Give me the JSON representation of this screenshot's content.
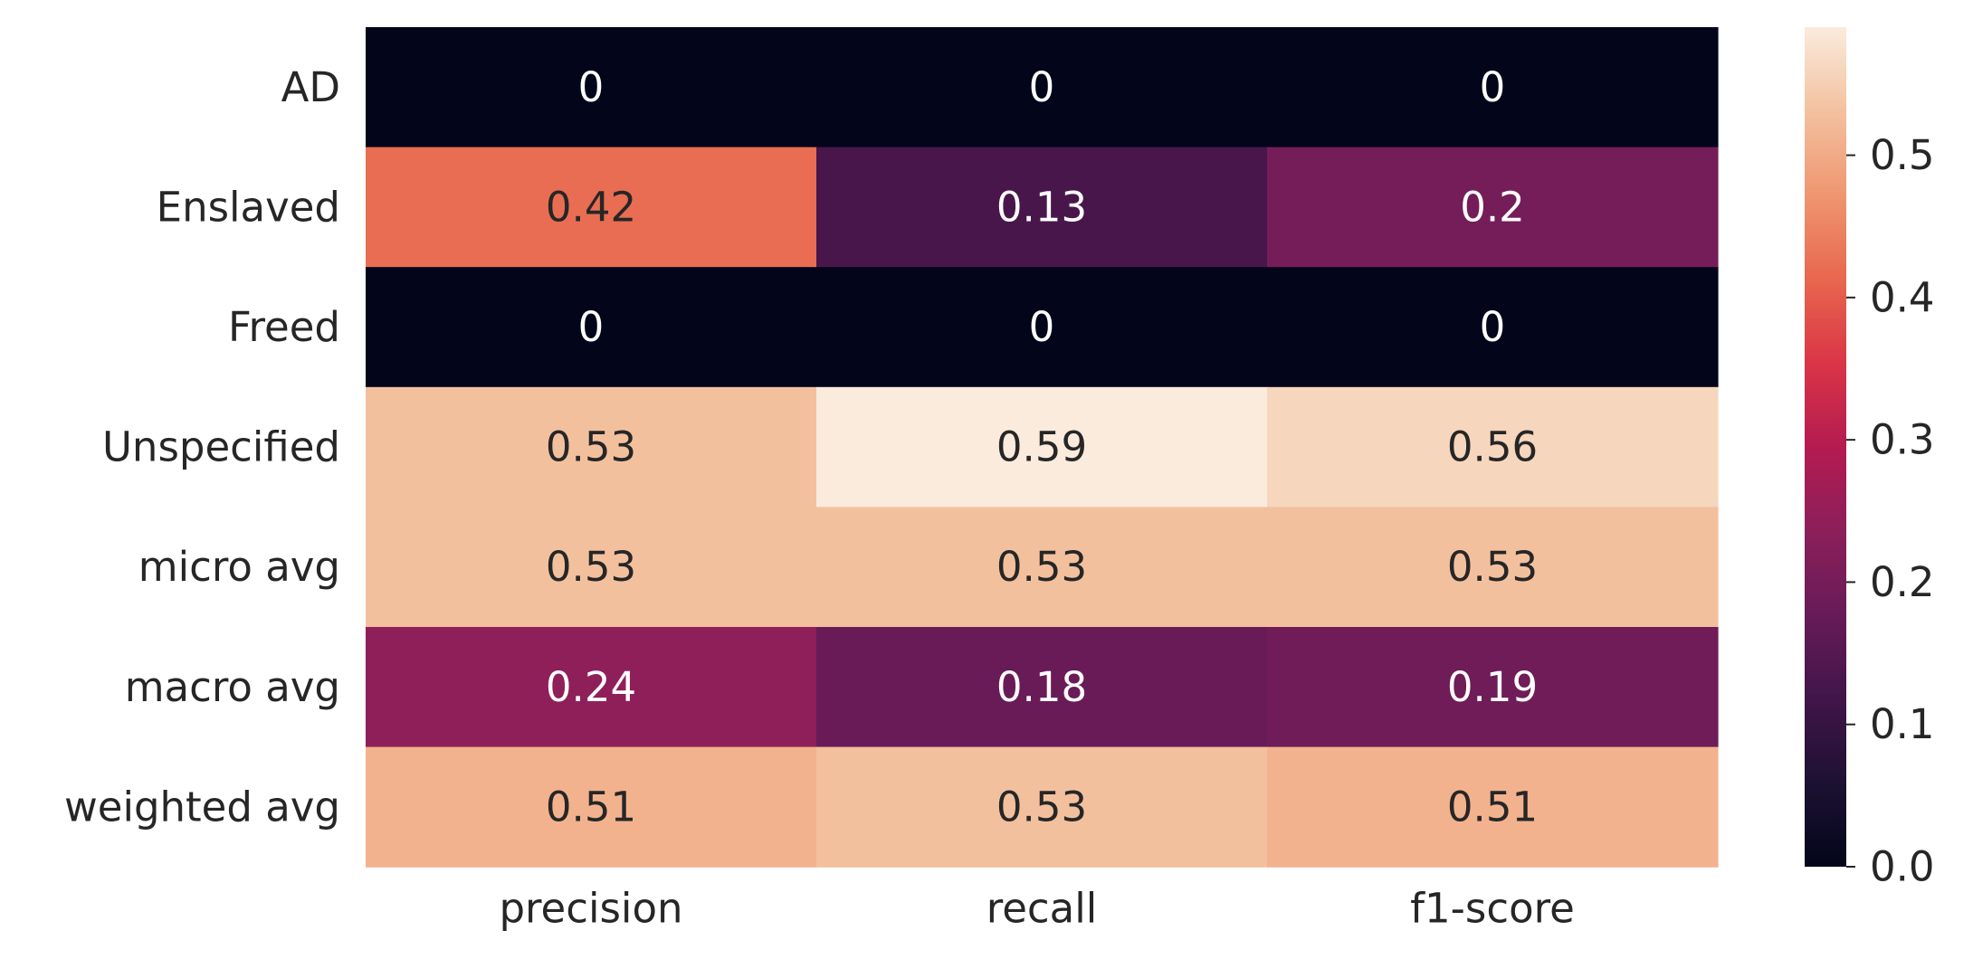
{
  "chart_data": {
    "type": "heatmap",
    "title": "",
    "xlabel": "",
    "ylabel": "",
    "rows": [
      "AD",
      "Enslaved",
      "Freed",
      "Unspecified",
      "micro avg",
      "macro avg",
      "weighted avg"
    ],
    "columns": [
      "precision",
      "recall",
      "f1-score"
    ],
    "values": [
      [
        0,
        0,
        0
      ],
      [
        0.42,
        0.13,
        0.2
      ],
      [
        0,
        0,
        0
      ],
      [
        0.53,
        0.59,
        0.56
      ],
      [
        0.53,
        0.53,
        0.53
      ],
      [
        0.24,
        0.18,
        0.19
      ],
      [
        0.51,
        0.53,
        0.51
      ]
    ],
    "annotations": [
      [
        "0",
        "0",
        "0"
      ],
      [
        "0.42",
        "0.13",
        "0.2"
      ],
      [
        "0",
        "0",
        "0"
      ],
      [
        "0.53",
        "0.59",
        "0.56"
      ],
      [
        "0.53",
        "0.53",
        "0.53"
      ],
      [
        "0.24",
        "0.18",
        "0.19"
      ],
      [
        "0.51",
        "0.53",
        "0.51"
      ]
    ],
    "colormap": "rocket",
    "colorbar": {
      "vmin": 0,
      "vmax": 0.59,
      "ticks": [
        0.0,
        0.1,
        0.2,
        0.3,
        0.4,
        0.5
      ],
      "tick_labels": [
        "0.0",
        "0.1",
        "0.2",
        "0.3",
        "0.4",
        "0.5"
      ]
    },
    "grid": false,
    "legend": "colorbar-right"
  }
}
